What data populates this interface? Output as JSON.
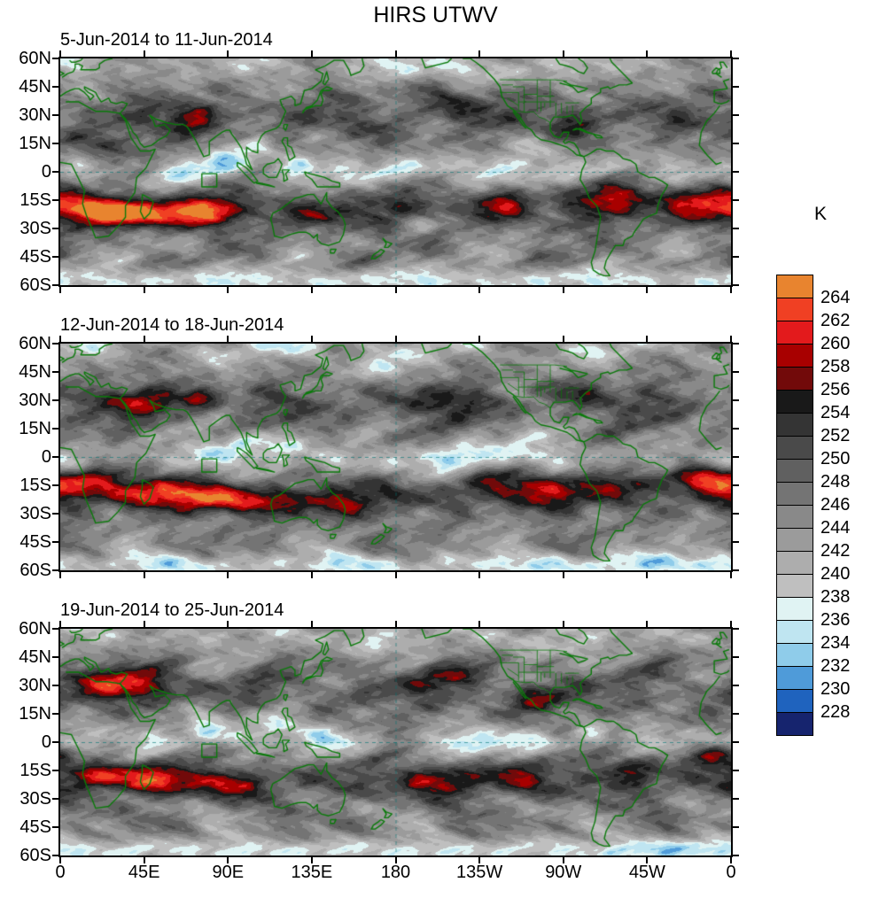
{
  "chart_data": {
    "type": "heatmap",
    "title": "HIRS UTWV",
    "units": "K",
    "colorbar_unit": "K",
    "colorbar_ticks": [
      "264",
      "262",
      "260",
      "258",
      "256",
      "254",
      "252",
      "250",
      "248",
      "246",
      "244",
      "242",
      "240",
      "238",
      "236",
      "234",
      "232",
      "230",
      "228"
    ],
    "palette_top_to_bottom": [
      "#e8842f",
      "#f04023",
      "#e31a1c",
      "#a80000",
      "#720a0a",
      "#191919",
      "#343434",
      "#4a4a4a",
      "#606060",
      "#747474",
      "#898989",
      "#9b9b9b",
      "#adadad",
      "#bfbfbf",
      "#e0f3f3",
      "#bfe5f1",
      "#8fccea",
      "#4f9bd9",
      "#1f63be",
      "#16246e"
    ],
    "contour_interval": 2,
    "value_range": [
      228,
      264
    ],
    "legend_position": "right",
    "x_tick_labels": [
      "0",
      "45E",
      "90E",
      "135E",
      "180",
      "135W",
      "90W",
      "45W",
      "0"
    ],
    "y_tick_labels": [
      "60N",
      "45N",
      "30N",
      "15N",
      "0",
      "15S",
      "30S",
      "45S",
      "60S"
    ],
    "x_axis": "longitude (0 eastward through 180 back to 0)",
    "y_axis": "latitude (60N to 60S)",
    "panels": [
      {
        "title": "5-Jun-2014 to 11-Jun-2014"
      },
      {
        "title": "12-Jun-2014 to 18-Jun-2014"
      },
      {
        "title": "19-Jun-2014 to 25-Jun-2014"
      }
    ],
    "map_overlay": {
      "coastline_color": "#0a7a0a",
      "region_marker": "small green box near 80E, 1S-8S",
      "reference_lines": "dashed lines at 180 longitude and at the equator"
    },
    "description": "Weekly maps of HIRS UTWV brightness temperature (K); filled contours every 2 K from 228 to 264. Warm colors = high values, blues = low values; green coastlines and US state borders overlaid."
  }
}
